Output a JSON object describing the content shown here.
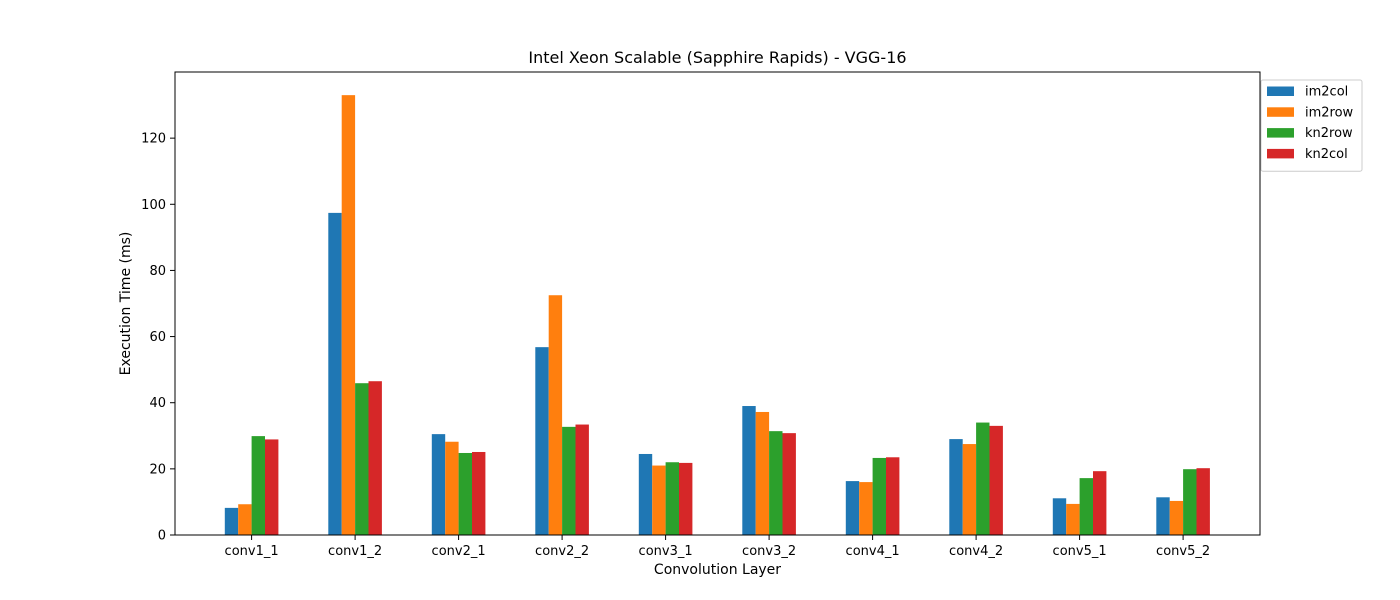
{
  "chart_data": {
    "type": "bar",
    "title": "Intel Xeon Scalable (Sapphire Rapids) - VGG-16",
    "xlabel": "Convolution Layer",
    "ylabel": "Execution Time (ms)",
    "ylim": [
      0,
      140
    ],
    "yticks": [
      0,
      20,
      40,
      60,
      80,
      100,
      120
    ],
    "grid": false,
    "legend_position": "top-right, outside plot",
    "categories": [
      "conv1_1",
      "conv1_2",
      "conv2_1",
      "conv2_2",
      "conv3_1",
      "conv3_2",
      "conv4_1",
      "conv4_2",
      "conv5_1",
      "conv5_2"
    ],
    "series": [
      {
        "name": "im2col",
        "color": "#1f77b4",
        "values": [
          8.2,
          97.4,
          30.5,
          56.8,
          24.5,
          39.0,
          16.3,
          29.0,
          11.1,
          11.4
        ]
      },
      {
        "name": "im2row",
        "color": "#ff7f0e",
        "values": [
          9.3,
          133.0,
          28.2,
          72.5,
          21.0,
          37.2,
          16.0,
          27.5,
          9.4,
          10.3
        ]
      },
      {
        "name": "kn2row",
        "color": "#2ca02c",
        "values": [
          29.9,
          45.9,
          24.8,
          32.7,
          22.0,
          31.4,
          23.3,
          34.0,
          17.2,
          19.9
        ]
      },
      {
        "name": "kn2col",
        "color": "#d62728",
        "values": [
          28.9,
          46.5,
          25.1,
          33.4,
          21.8,
          30.8,
          23.5,
          33.0,
          19.3,
          20.2
        ]
      }
    ]
  }
}
